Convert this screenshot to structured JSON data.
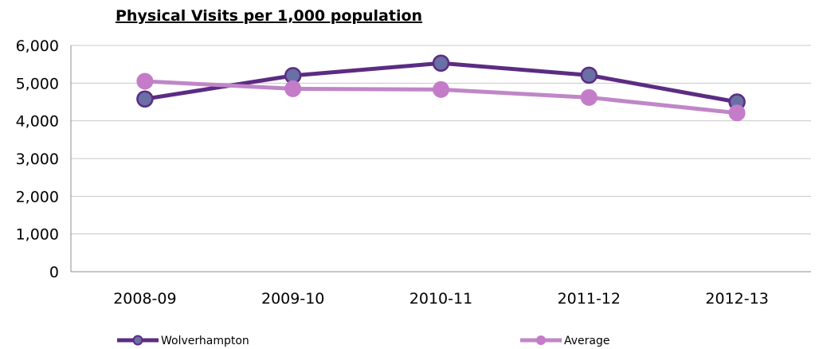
{
  "chart_data": {
    "type": "line",
    "title": "Physical Visits per 1,000 population",
    "categories": [
      "2008-09",
      "2009-10",
      "2010-11",
      "2011-12",
      "2012-13"
    ],
    "series": [
      {
        "name": "Wolverhampton",
        "values": [
          4580,
          5200,
          5530,
          5210,
          4500
        ],
        "color": "#5B2C83",
        "marker_fill": "#6A6FA5"
      },
      {
        "name": "Average",
        "values": [
          5050,
          4850,
          4830,
          4620,
          4210
        ],
        "color": "#C086C8",
        "marker_fill": "#C47CC8"
      }
    ],
    "ylim": [
      0,
      6000
    ],
    "yticks": [
      "0",
      "1,000",
      "2,000",
      "3,000",
      "4,000",
      "5,000",
      "6,000"
    ],
    "grid": true,
    "legend_position": "bottom"
  }
}
